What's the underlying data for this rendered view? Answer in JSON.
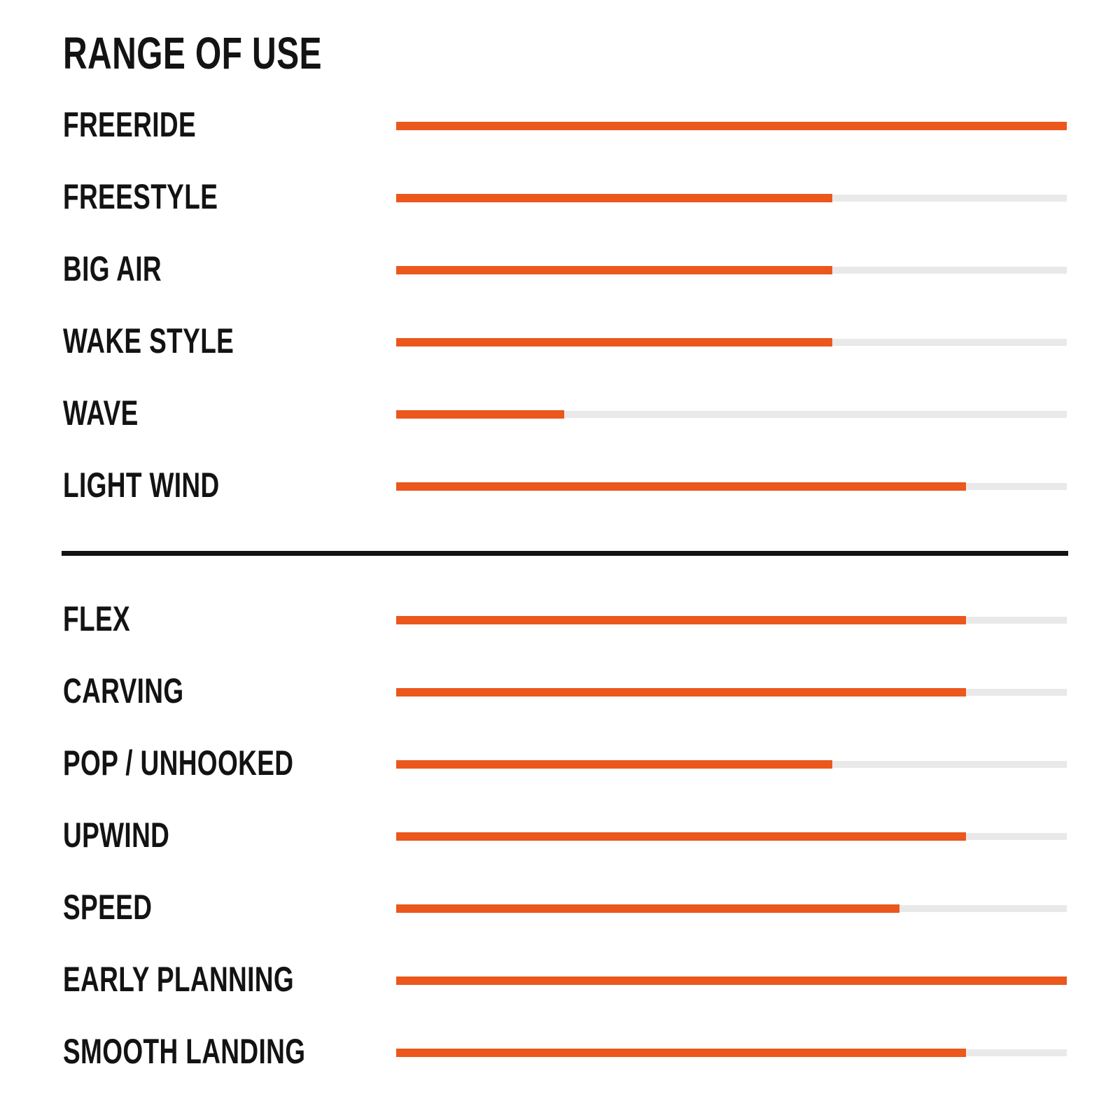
{
  "title": "RANGE OF USE",
  "chart_data": {
    "type": "bar",
    "orientation": "horizontal",
    "title": "RANGE OF USE",
    "value_range": [
      0,
      100
    ],
    "unit": "percent of full bar",
    "grid": false,
    "legend": "none",
    "groups": [
      {
        "name": "riding-styles",
        "categories": [
          "FREERIDE",
          "FREESTYLE",
          "BIG AIR",
          "WAKE STYLE",
          "WAVE",
          "LIGHT WIND"
        ],
        "values": [
          100,
          65,
          65,
          65,
          25,
          85
        ]
      },
      {
        "name": "performance-characteristics",
        "categories": [
          "FLEX",
          "CARVING",
          "POP / UNHOOKED",
          "UPWIND",
          "SPEED",
          "EARLY PLANNING",
          "SMOOTH LANDING"
        ],
        "values": [
          85,
          85,
          65,
          85,
          75,
          100,
          85
        ]
      }
    ],
    "colors": {
      "fill": "#EB571D",
      "track": "#E9E9E9",
      "label": "#131313",
      "divider": "#131313",
      "background": "#FFFFFF"
    }
  }
}
